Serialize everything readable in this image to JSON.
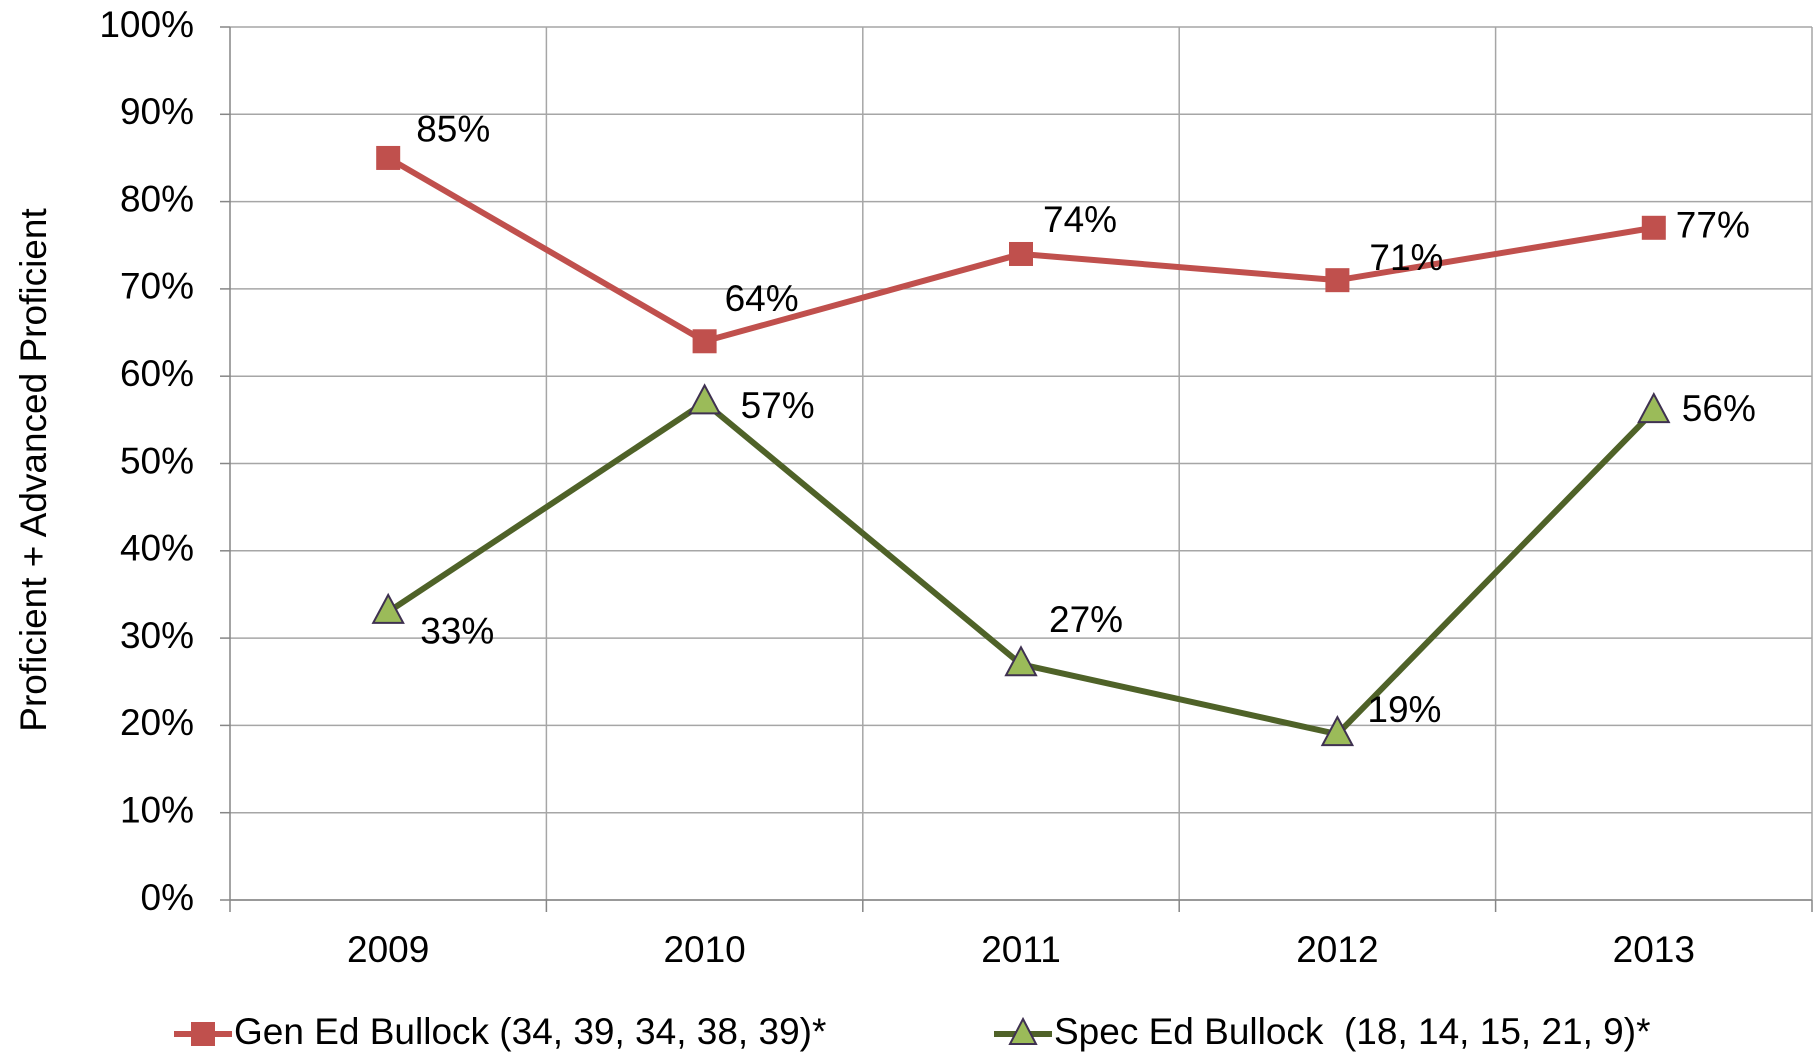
{
  "chart_data": {
    "type": "line",
    "y_axis_label": "Proficient + Advanced Proficient",
    "categories": [
      "2009",
      "2010",
      "2011",
      "2012",
      "2013"
    ],
    "series": [
      {
        "name": "Gen Ed Bullock (34, 39, 34, 38, 39)*",
        "color": "#c0504d",
        "marker": "square",
        "values": [
          85,
          64,
          74,
          71,
          77
        ],
        "value_labels": [
          "85%",
          "64%",
          "74%",
          "71%",
          "77%"
        ]
      },
      {
        "name": "Spec Ed Bullock  (18, 14, 15, 21, 9)*",
        "color": "#4f6228",
        "marker_color": "#9bbb59",
        "marker": "triangle",
        "values": [
          33,
          57,
          27,
          19,
          56
        ],
        "value_labels": [
          "33%",
          "57%",
          "27%",
          "19%",
          "56%"
        ]
      }
    ],
    "ylim": [
      0,
      100
    ],
    "yticks": [
      {
        "value": 0,
        "label": "0%"
      },
      {
        "value": 10,
        "label": "10%"
      },
      {
        "value": 20,
        "label": "20%"
      },
      {
        "value": 30,
        "label": "30%"
      },
      {
        "value": 40,
        "label": "40%"
      },
      {
        "value": 50,
        "label": "50%"
      },
      {
        "value": 60,
        "label": "60%"
      },
      {
        "value": 70,
        "label": "70%"
      },
      {
        "value": 80,
        "label": "80%"
      },
      {
        "value": 90,
        "label": "90%"
      },
      {
        "value": 100,
        "label": "100%"
      }
    ],
    "grid": true,
    "legend": "bottom"
  }
}
